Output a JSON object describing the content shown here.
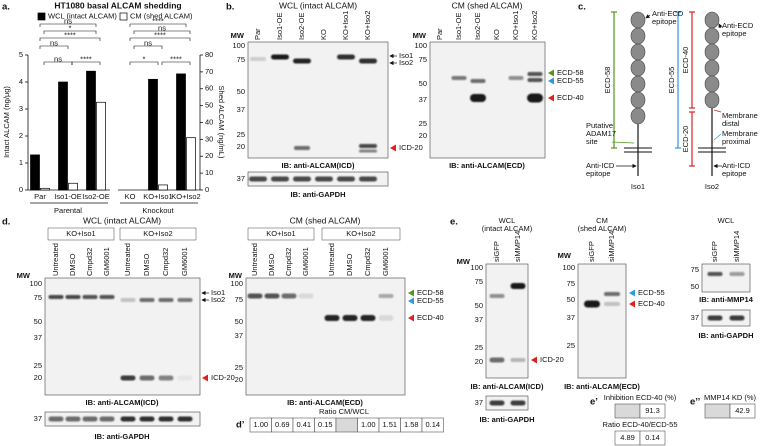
{
  "chart_data": {
    "type": "bar",
    "panel": "a.",
    "title": "HT1080 basal ALCAM shedding",
    "categories": [
      "Par",
      "Iso1-OE",
      "Iso2-OE",
      "KO",
      "KO+Iso1",
      "KO+Iso2"
    ],
    "groups": [
      "Parental",
      "Knockout"
    ],
    "series": [
      {
        "name": "WCL (intact ALCAM)",
        "color": "#000000",
        "values": [
          1.3,
          4.0,
          4.4,
          0,
          4.1,
          4.3
        ]
      },
      {
        "name": "CM (shed ALCAM)",
        "color": "#ffffff",
        "axis": "y2",
        "values": [
          1,
          4,
          52,
          0,
          3,
          31
        ]
      }
    ],
    "ylabel": "Intact ALCAM (ng/μg)",
    "y2label": "Shed ALCAM (ng/mL)",
    "ylim": [
      0,
      5
    ],
    "yticks": [
      0,
      1,
      2,
      3,
      4,
      5
    ],
    "y2lim": [
      0,
      80
    ],
    "y2ticks": [
      0,
      10,
      20,
      30,
      40,
      50,
      60,
      70,
      80
    ],
    "annotations": [
      "ns",
      "*",
      "****",
      "ns",
      "ns",
      "****",
      "****",
      "ns",
      "****",
      "ns",
      "*",
      "****"
    ]
  },
  "panel_b": {
    "label": "b.",
    "wcl": {
      "title": "WCL (intact ALCAM)",
      "mw_title": "MW",
      "lanes": [
        "Par",
        "Iso1-OE",
        "Iso2-OE",
        "KO",
        "KO+Iso1",
        "KO+Iso2"
      ],
      "mw": [
        100,
        75,
        50,
        37,
        25,
        20
      ],
      "iso1": "Iso1",
      "iso2": "Iso2",
      "icd20": "ICD-20",
      "ib": "IB: anti-ALCAM(ICD)",
      "gapdh_mw": 37,
      "gapdh_ib": "IB: anti-GAPDH"
    },
    "cm": {
      "title": "CM (shed ALCAM)",
      "mw_title": "MW",
      "lanes": [
        "Par",
        "Iso1-OE",
        "Iso2-OE",
        "KO",
        "KO+Iso1",
        "KO+Iso2"
      ],
      "mw": [
        100,
        75,
        50,
        37,
        25,
        20
      ],
      "ecd58": "ECD-58",
      "ecd55": "ECD-55",
      "ecd40": "ECD-40",
      "ib": "IB: anti-ALCAM(ECD)"
    }
  },
  "panel_c": {
    "label": "c.",
    "anti_ecd_1": [
      "Anti-ECD",
      "epitope"
    ],
    "anti_ecd_2": [
      "Anti-ECD",
      "epitope"
    ],
    "ecd58": "ECD-58",
    "ecd55": "ECD-55",
    "ecd40": "ECD-40",
    "ecd20": "ECD-20",
    "adam17": [
      "Putative",
      "ADAM17",
      "site"
    ],
    "anti_icd_1": [
      "Anti-ICD",
      "epitope"
    ],
    "anti_icd_2": [
      "Anti-ICD",
      "epitope"
    ],
    "distal": [
      "Membrane",
      "distal"
    ],
    "proximal": [
      "Membrane",
      "proximal"
    ],
    "iso1": "Iso1",
    "iso2": "Iso2"
  },
  "panel_d": {
    "label": "d.",
    "wcl": {
      "title": "WCL (intact ALCAM)",
      "groups": [
        "KO+Iso1",
        "KO+Iso2"
      ],
      "mw_title": "MW",
      "lanes": [
        "Untreated",
        "DMSO",
        "Cmpd32",
        "GM6001",
        "Untreated",
        "DMSO",
        "Cmpd32",
        "GM6001"
      ],
      "mw": [
        100,
        75,
        50,
        37,
        25,
        20
      ],
      "iso1": "Iso1",
      "iso2": "Iso2",
      "icd20": "ICD-20",
      "ib": "IB: anti-ALCAM(ICD)",
      "gapdh_mw": 37,
      "gapdh_ib": "IB: anti-GAPDH"
    },
    "cm": {
      "title": "CM (shed ALCAM)",
      "groups": [
        "KO+Iso1",
        "KO+Iso2"
      ],
      "mw_title": "MW",
      "lanes": [
        "Untreated",
        "DMSO",
        "Cmpd32",
        "GM6001",
        "Untreated",
        "DMSO",
        "Cmpd32",
        "GM6001"
      ],
      "mw": [
        100,
        75,
        50,
        37,
        25,
        20
      ],
      "ecd58": "ECD-58",
      "ecd55": "ECD-55",
      "ecd40": "ECD-40",
      "ib": "IB: anti-ALCAM(ECD)"
    },
    "ratio": {
      "label": "d’",
      "title": "Ratio CM/WCL",
      "ko_iso1": [
        "1.00",
        "0.69",
        "0.41",
        "0.15"
      ],
      "ko_iso2": [
        "1.00",
        "1.51",
        "1.58",
        "0.14"
      ]
    }
  },
  "panel_e": {
    "label": "e.",
    "wcl": {
      "title": [
        "WCL",
        "(intact ALCAM)"
      ],
      "mw_title": "MW",
      "lanes": [
        "siGFP",
        "siMMP14"
      ],
      "mw": [
        100,
        75,
        50,
        37,
        25,
        20
      ],
      "icd20": "ICD-20",
      "ib": "IB: anti-ALCAM(ICD)",
      "gapdh_mw": 37,
      "gapdh_ib": "IB: anti-GAPDH"
    },
    "cm": {
      "title": [
        "CM",
        "(shed ALCAM)"
      ],
      "mw_title": "MW",
      "lanes": [
        "siGFP",
        "siMMP14"
      ],
      "mw": [
        100,
        75,
        50,
        37,
        25
      ],
      "ecd55": "ECD-55",
      "ecd40": "ECD-40",
      "ib": "IB: anti-ALCAM(ECD)"
    },
    "wcl2": {
      "title": "WCL",
      "lanes": [
        "siGFP",
        "siMMP14"
      ],
      "mw": [
        75,
        50
      ],
      "ib": "IB: anti-MMP14",
      "gapdh_mw": 37,
      "gapdh_ib": "IB: anti-GAPDH"
    },
    "inhibition": {
      "label": "e’",
      "title": "Inhibition ECD-40 (%)",
      "value": 91.3,
      "ratio_title": "Ratio ECD-40/ECD-55",
      "ratio": [
        4.89,
        0.14
      ]
    },
    "kd": {
      "label": "e’’",
      "title": "MMP14 KD (%)",
      "value": 42.9
    }
  }
}
